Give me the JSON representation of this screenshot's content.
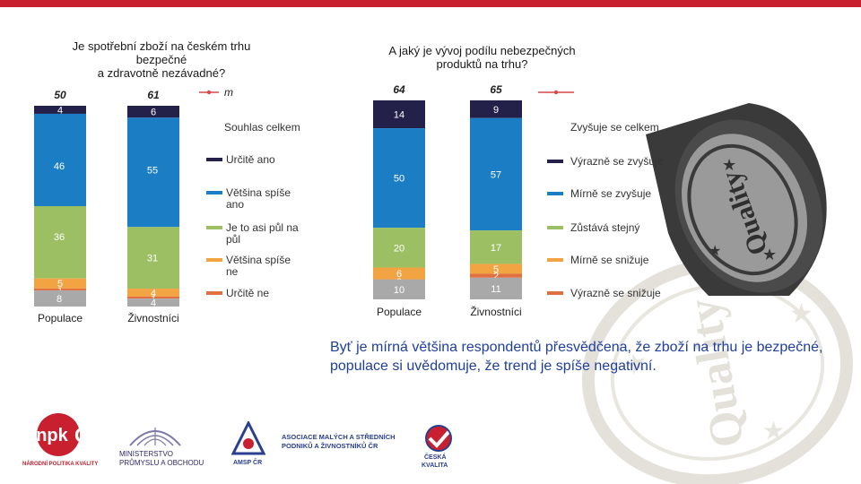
{
  "chart_data": [
    {
      "type": "bar",
      "title_lines": [
        "Je spotřební zboží na českém trhu",
        "bezpečné",
        "a zdravotně nezávadné?"
      ],
      "categories": [
        "Populace",
        "Živnostníci"
      ],
      "totals": [
        "50",
        "61"
      ],
      "total_marker_label": "m",
      "total_legend": "Souhlas celkem",
      "series": [
        {
          "name": "Určitě ano",
          "values": [
            4,
            6
          ],
          "labels": [
            "4",
            "6"
          ],
          "color": "#23204a"
        },
        {
          "name": "Většina spíše ano",
          "values": [
            46,
            55
          ],
          "labels": [
            "46",
            "55"
          ],
          "color": "#1b7ec4"
        },
        {
          "name": "Je to asi půl na půl",
          "values": [
            36,
            31
          ],
          "labels": [
            "36",
            "31"
          ],
          "color": "#9cbf63"
        },
        {
          "name": "Většina spíše ne",
          "values": [
            5,
            4
          ],
          "labels": [
            "5",
            "4"
          ],
          "color": "#f2a443"
        },
        {
          "name": "Určitě ne",
          "values": [
            1,
            1
          ],
          "labels": [
            "1",
            "1"
          ],
          "color": "#e0703f"
        },
        {
          "name": "",
          "values": [
            8,
            4
          ],
          "labels": [
            "8",
            "4"
          ],
          "color": "#a9a9a9"
        }
      ],
      "ylim": [
        0,
        100
      ],
      "legend_position": "right"
    },
    {
      "type": "bar",
      "title_lines": [
        "A jaký je vývoj podílu nebezpečných",
        "produktů na trhu?"
      ],
      "categories": [
        "Populace",
        "Živnostníci"
      ],
      "totals": [
        "64",
        "65"
      ],
      "total_legend": "Zvyšuje se celkem",
      "series": [
        {
          "name": "Výrazně se zvyšuje",
          "values": [
            14,
            9
          ],
          "labels": [
            "14",
            "9"
          ],
          "color": "#23204a"
        },
        {
          "name": "Mírně se zvyšuje",
          "values": [
            50,
            57
          ],
          "labels": [
            "50",
            "57"
          ],
          "color": "#1b7ec4"
        },
        {
          "name": "Zůstává stejný",
          "values": [
            20,
            17
          ],
          "labels": [
            "20",
            "17"
          ],
          "color": "#9cbf63"
        },
        {
          "name": "Mírně se snižuje",
          "values": [
            6,
            5
          ],
          "labels": [
            "6",
            "5"
          ],
          "color": "#f2a443"
        },
        {
          "name": "Výrazně se snižuje",
          "values": [
            0,
            2
          ],
          "labels": [
            "0",
            "2"
          ],
          "color": "#e0703f"
        },
        {
          "name": "",
          "values": [
            10,
            11
          ],
          "labels": [
            "10",
            "11"
          ],
          "color": "#a9a9a9"
        }
      ],
      "ylim": [
        0,
        100
      ],
      "legend_position": "right"
    }
  ],
  "caption_lines": [
    "Byť je mírná většina respondentů přesvědčena, že zboží na trhu je bezpečné,",
    "populace si uvědomuje, že trend je spíše negativní."
  ],
  "stamp_text": "Quality",
  "logos": {
    "npk_mark": "npk",
    "npk_caption": "NÁRODNÍ POLITIKA KVALITY",
    "ministry_lines": [
      "MINISTERSTVO",
      "PRŮMYSLU A OBCHODU"
    ],
    "amsp_lines": [
      "ASOCIACE MALÝCH A STŘEDNÍCH",
      "PODNIKŮ A ŽIVNOSTNÍKŮ ČR"
    ],
    "amsp_caption": "AMSP ČR",
    "ceska_lines": [
      "ČESKÁ",
      "KVALITA"
    ]
  },
  "colors": {
    "accent": "#c8202f",
    "caption": "#1f3f9c",
    "total_line": "#d94848"
  }
}
